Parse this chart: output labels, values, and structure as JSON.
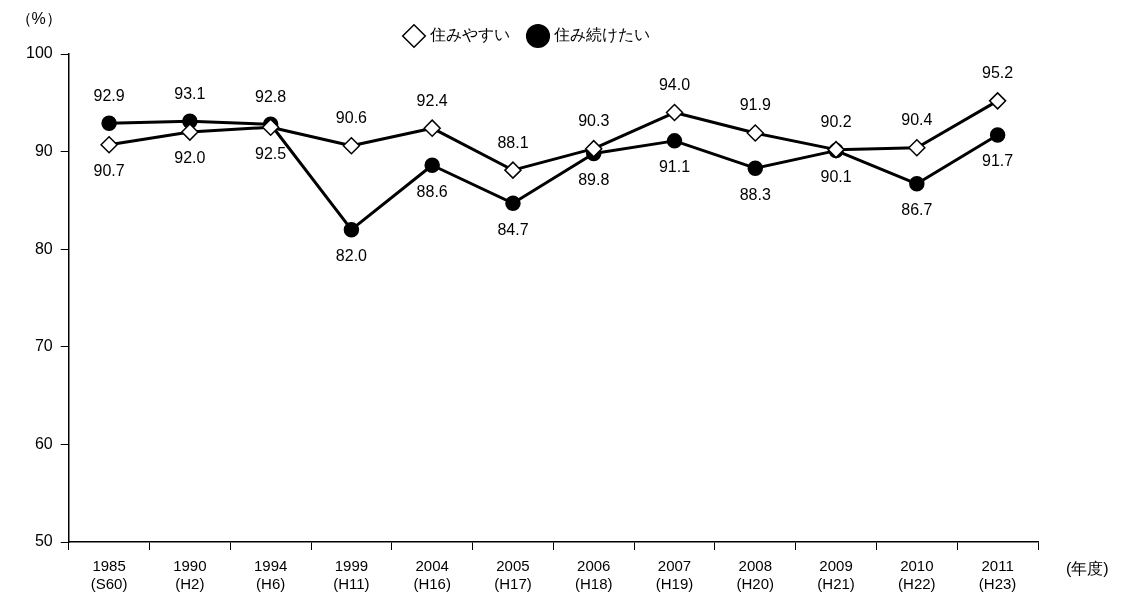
{
  "chart_data": {
    "type": "line",
    "ylabel": "（%）",
    "xlabel": "(年度)",
    "categories": [
      "1985\n(S60)",
      "1990\n(H2)",
      "1994\n(H6)",
      "1999\n(H11)",
      "2004\n(H16)",
      "2005\n(H17)",
      "2006\n(H18)",
      "2007\n(H19)",
      "2008\n(H20)",
      "2009\n(H21)",
      "2010\n(H22)",
      "2011\n(H23)"
    ],
    "series": [
      {
        "name": "住みやすい",
        "color": "#000000",
        "marker": "diamond",
        "values": [
          90.7,
          92.0,
          92.5,
          90.6,
          92.4,
          88.1,
          90.3,
          94.0,
          91.9,
          90.2,
          90.4,
          95.2
        ],
        "value_labels": [
          "90.7",
          "92.0",
          "92.5",
          "90.6",
          "92.4",
          "88.1",
          "90.3",
          "94.0",
          "91.9",
          "90.2",
          "90.4",
          "95.2"
        ]
      },
      {
        "name": "住み続けたい",
        "color": "#000000",
        "marker": "circle",
        "values": [
          92.9,
          93.1,
          92.8,
          82.0,
          88.6,
          84.7,
          89.8,
          91.1,
          88.3,
          90.1,
          86.7,
          91.7
        ],
        "value_labels": [
          "92.9",
          "93.1",
          "92.8",
          "82.0",
          "88.6",
          "84.7",
          "89.8",
          "91.1",
          "88.3",
          "90.1",
          "86.7",
          "91.7"
        ]
      }
    ],
    "ylim": [
      50,
      100
    ],
    "yticks": [
      50,
      60,
      70,
      80,
      90,
      100
    ],
    "grid": false,
    "legend": "top",
    "line_style": "solid"
  }
}
